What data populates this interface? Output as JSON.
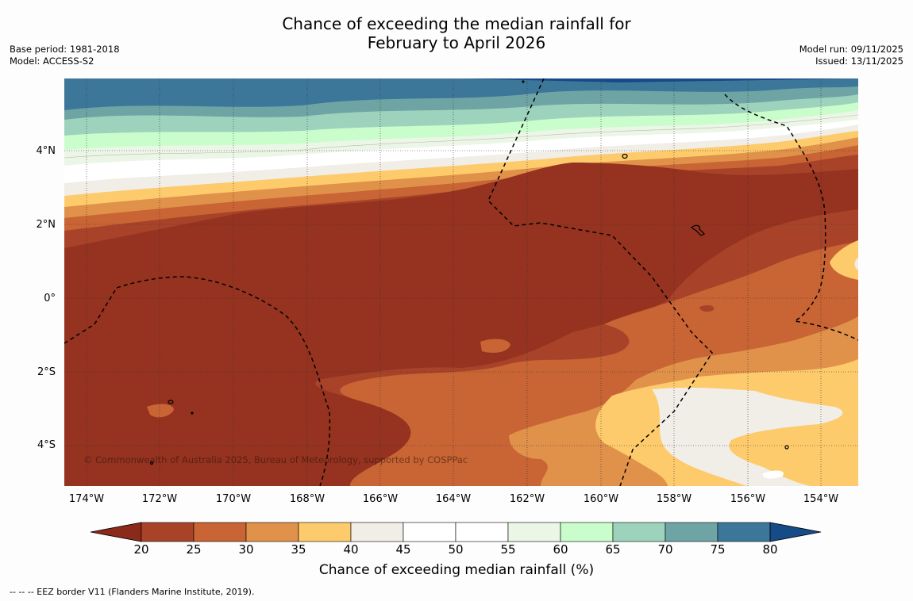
{
  "title": {
    "line1": "Chance of exceeding the median rainfall for",
    "line2": "February to April 2026"
  },
  "meta_left": {
    "base_period": "Base period: 1981-2018",
    "model": "Model: ACCESS-S2"
  },
  "meta_right": {
    "model_run": "Model run: 09/11/2025",
    "issued": "Issued: 13/11/2025"
  },
  "map": {
    "lat_labels": [
      "4°N",
      "2°N",
      "0°",
      "2°S",
      "4°S"
    ],
    "lon_labels": [
      "174°W",
      "172°W",
      "170°W",
      "168°W",
      "166°W",
      "164°W",
      "162°W",
      "160°W",
      "158°W",
      "156°W",
      "154°W"
    ],
    "copyright": "© Commonwealth of Australia 2025, Bureau of Meteorology, supported by COSPPac"
  },
  "colorbar": {
    "ticks": [
      "20",
      "25",
      "30",
      "35",
      "40",
      "45",
      "50",
      "55",
      "60",
      "65",
      "70",
      "75",
      "80"
    ],
    "colors": [
      "#8b2a1a",
      "#a8432a",
      "#c96434",
      "#e0914a",
      "#fdcb6b",
      "#f1ede7",
      "#ffffff",
      "#ffffff",
      "#ebf6e7",
      "#c9fdcb",
      "#9dd2bd",
      "#6fa4a5",
      "#3c779a",
      "#154b86"
    ],
    "title": "Chance of exceeding median rainfall (%)"
  },
  "footer": {
    "eez_note": "--  --  -- EEZ border V11 (Flanders Marine Institute, 2019)."
  }
}
